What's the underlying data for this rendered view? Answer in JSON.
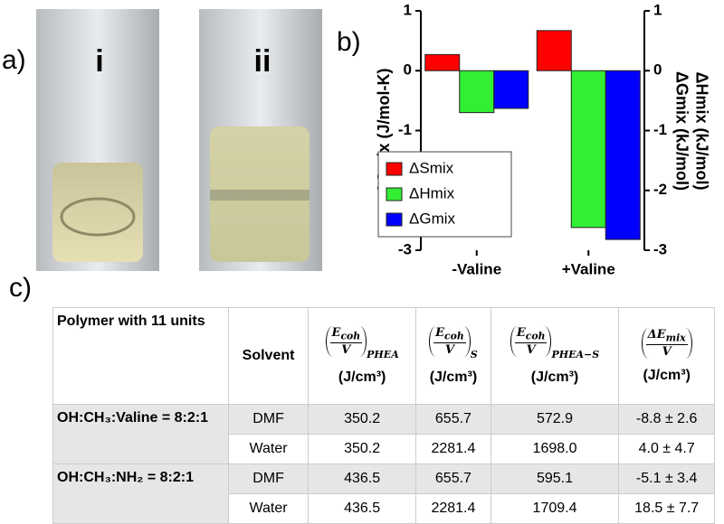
{
  "panels": {
    "a": "a)",
    "b": "b)",
    "c": "c)"
  },
  "photos": {
    "left": "i",
    "right": "ii"
  },
  "chart_data": {
    "type": "bar",
    "categories": [
      "-Valine",
      "+Valine"
    ],
    "series": [
      {
        "name": "ΔSmix",
        "color": "#ff0000",
        "values": [
          0.27,
          0.67
        ]
      },
      {
        "name": "ΔHmix",
        "color": "#33ee33",
        "values": [
          -0.7,
          -2.62
        ]
      },
      {
        "name": "ΔGmix",
        "color": "#0000ff",
        "values": [
          -0.63,
          -2.82
        ]
      }
    ],
    "ylim": [
      -3,
      1
    ],
    "yticks": [
      -3,
      -2,
      -1,
      0,
      1
    ],
    "y2lim": [
      -3,
      1
    ],
    "y2ticks": [
      -3,
      -2,
      -1,
      0,
      1
    ],
    "ylabel": "ΔSmix (J/mol-K)",
    "y2label": [
      "ΔGmix (kJ/mol)",
      "ΔHmix (kJ/mol)"
    ],
    "legend": "lower-left",
    "grid": false
  },
  "table": {
    "header": {
      "polymer": "Polymer with 11 units",
      "solvent": "Solvent",
      "formulas": [
        {
          "num": "E",
          "num_sub": "coh",
          "den": "V",
          "sub": "PHEA"
        },
        {
          "num": "E",
          "num_sub": "coh",
          "den": "V",
          "sub": "S"
        },
        {
          "num": "E",
          "num_sub": "coh",
          "den": "V",
          "sub": "PHEA−S"
        },
        {
          "num": "ΔE",
          "num_sub": "mix",
          "den": "V"
        }
      ],
      "units": [
        "(J/cm³)",
        "(J/cm³)",
        "(J/cm³)",
        "(J/cm³)"
      ]
    },
    "groups": [
      {
        "label": "OH:CH₃:Valine = 8:2:1",
        "rows": [
          [
            "DMF",
            "350.2",
            "655.7",
            "572.9",
            "-8.8 ± 2.6"
          ],
          [
            "Water",
            "350.2",
            "2281.4",
            "1698.0",
            "4.0 ± 4.7"
          ]
        ]
      },
      {
        "label": "OH:CH₃:NH₂ = 8:2:1",
        "rows": [
          [
            "DMF",
            "436.5",
            "655.7",
            "595.1",
            "-5.1 ± 3.4"
          ],
          [
            "Water",
            "436.5",
            "2281.4",
            "1709.4",
            "18.5 ± 7.7"
          ]
        ]
      }
    ]
  }
}
